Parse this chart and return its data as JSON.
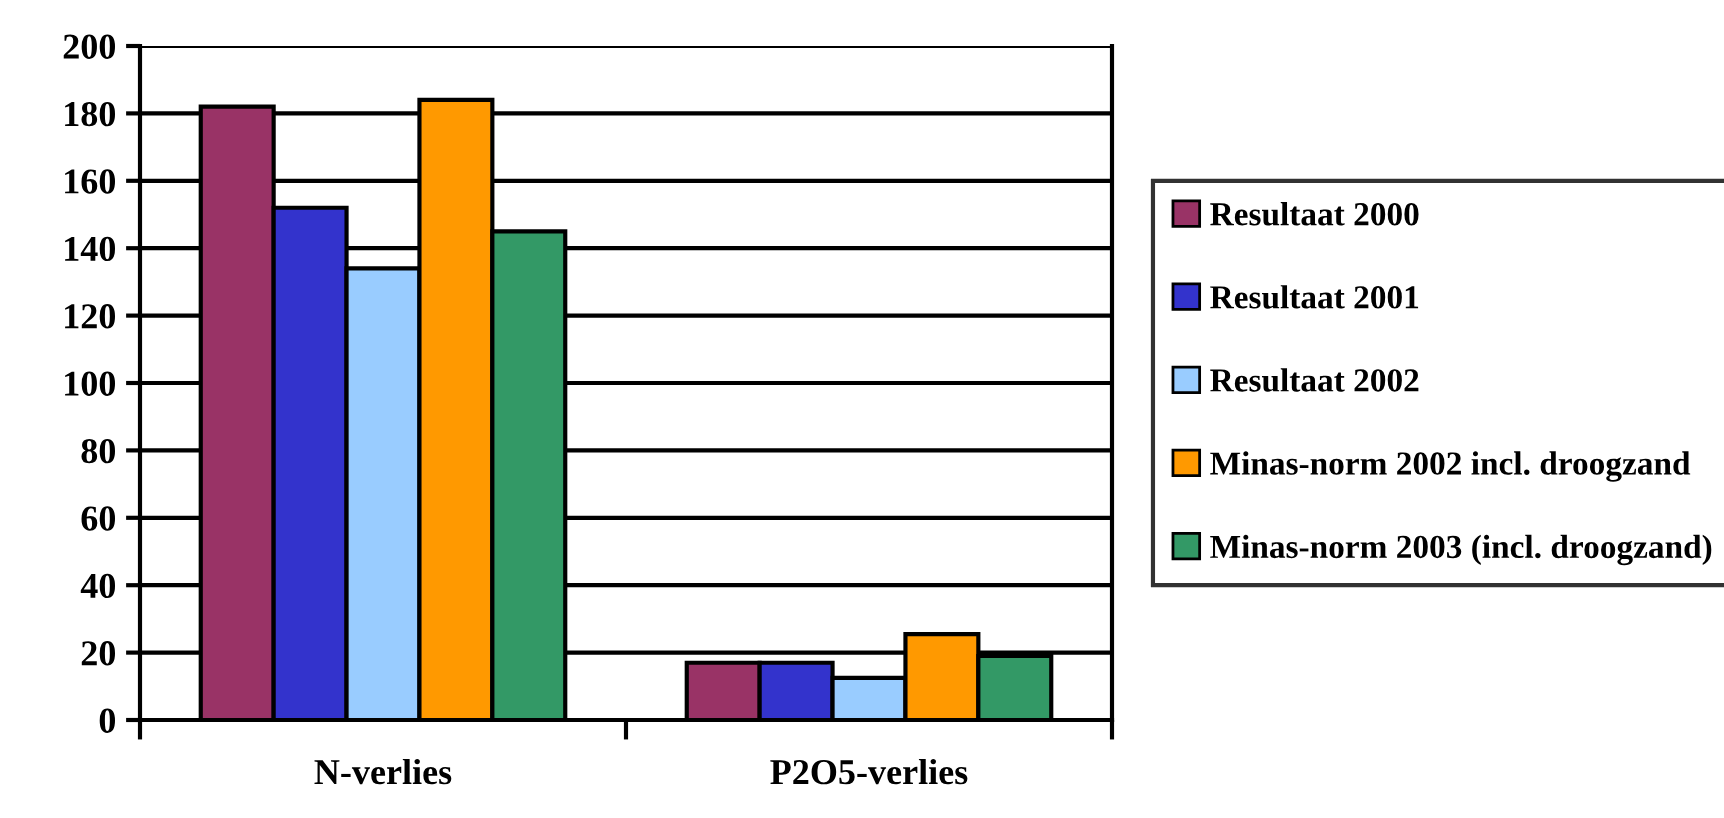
{
  "chart_data": {
    "type": "bar",
    "categories": [
      "N-verlies",
      "P2O5-verlies"
    ],
    "series": [
      {
        "name": "Resultaat 2000",
        "color": "#993366",
        "values": [
          182,
          17
        ]
      },
      {
        "name": "Resultaat 2001",
        "color": "#3333cc",
        "values": [
          152,
          17
        ]
      },
      {
        "name": "Resultaat 2002",
        "color": "#99ccff",
        "values": [
          134,
          12.5
        ]
      },
      {
        "name": "Minas-norm 2002 incl. droogzand",
        "color": "#ff9900",
        "values": [
          184,
          25.5
        ]
      },
      {
        "name": "Minas-norm 2003 (incl. droogzand)",
        "color": "#339966",
        "values": [
          145,
          19
        ]
      }
    ],
    "ylim": [
      0,
      200
    ],
    "yticks": [
      0,
      20,
      40,
      60,
      80,
      100,
      120,
      140,
      160,
      180,
      200
    ],
    "grid": "y",
    "legend": "right"
  }
}
